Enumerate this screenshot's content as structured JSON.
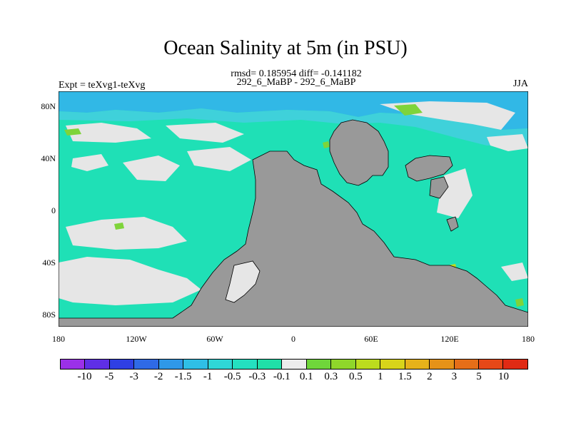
{
  "title": "Ocean Salinity at 5m (in PSU)",
  "subtitle": "rmsd= 0.185954 diff= -0.141182",
  "center_label": "292_6_MaBP - 292_6_MaBP",
  "left_label": "Expt = teXvg1-teXvg",
  "right_label": "JJA",
  "map": {
    "lon_range": [
      -180,
      180
    ],
    "lat_range": [
      -90,
      90
    ],
    "y_ticks": [
      "80N",
      "40N",
      "0",
      "40S",
      "80S"
    ],
    "x_ticks": [
      "180",
      "120W",
      "60W",
      "0",
      "60E",
      "120E",
      "180"
    ],
    "colors": {
      "ocean_base": "#1fe0b6",
      "near_zero": "#e6e6e6",
      "negative_mid": "#3fd1da",
      "negative_strong": "#31b8e6",
      "positive_low": "#7ed43a",
      "positive_mid": "#c2dd1a",
      "land": "#999999"
    }
  },
  "colorbar": {
    "labels": [
      "-10",
      "-5",
      "-3",
      "-2",
      "-1.5",
      "-1",
      "-0.5",
      "-0.3",
      "-0.1",
      "0.1",
      "0.3",
      "0.5",
      "1",
      "1.5",
      "2",
      "3",
      "5",
      "10"
    ],
    "colors": [
      "#9b30e8",
      "#5f2fe6",
      "#2f3fe4",
      "#2f6ae6",
      "#2f98e8",
      "#2fbfe6",
      "#2fd6d6",
      "#24e0c0",
      "#20e0a8",
      "#ececec",
      "#6fd63a",
      "#8fd62a",
      "#bcdc1e",
      "#d8d41a",
      "#e6b21a",
      "#e69218",
      "#e66e18",
      "#e64818",
      "#e02a14"
    ]
  }
}
